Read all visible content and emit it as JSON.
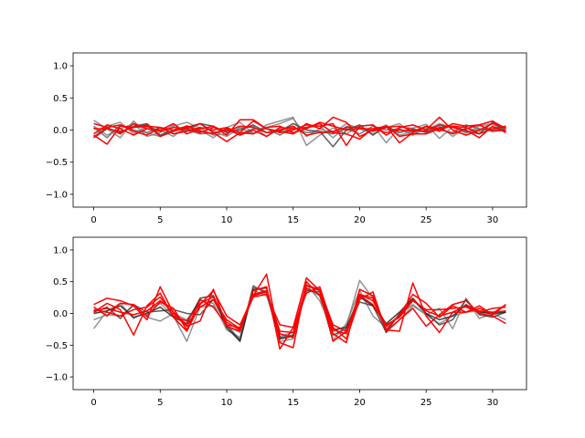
{
  "chart_data": [
    {
      "type": "line",
      "title": "",
      "xlabel": "",
      "ylabel": "",
      "xlim": [
        -1.55,
        32.55
      ],
      "ylim": [
        -1.2,
        1.2
      ],
      "xticks": [
        0,
        5,
        10,
        15,
        20,
        25,
        30
      ],
      "xtick_labels": [
        "0",
        "5",
        "10",
        "15",
        "20",
        "25",
        "30"
      ],
      "yticks": [
        1.0,
        0.5,
        0.0,
        -0.5,
        -1.0
      ],
      "ytick_labels": [
        "1.0",
        "0.5",
        "0.0",
        "−0.5",
        "−1.0"
      ],
      "grid": false,
      "x": [
        0,
        1,
        2,
        3,
        4,
        5,
        6,
        7,
        8,
        9,
        10,
        11,
        12,
        13,
        14,
        15,
        16,
        17,
        18,
        19,
        20,
        21,
        22,
        23,
        24,
        25,
        26,
        27,
        28,
        29,
        30,
        31
      ],
      "series": [
        {
          "group": "gray",
          "color": "#808080",
          "values": [
            0.15,
            0.02,
            -0.12,
            0.14,
            -0.05,
            -0.1,
            0.06,
            0.12,
            0.03,
            -0.08,
            -0.06,
            0.04,
            -0.06,
            0.08,
            0.14,
            0.2,
            -0.24,
            -0.08,
            0.03,
            -0.06,
            0.06,
            0.08,
            -0.2,
            0.04,
            0.03,
            0.09,
            -0.13,
            0.05,
            -0.05,
            0.06,
            0.1,
            -0.04
          ]
        },
        {
          "group": "gray",
          "color": "#808080",
          "values": [
            -0.1,
            0.06,
            0.12,
            -0.06,
            0.05,
            0.0,
            -0.1,
            0.07,
            0.0,
            -0.12,
            0.04,
            0.12,
            -0.05,
            0.04,
            0.1,
            0.18,
            -0.1,
            0.02,
            -0.05,
            0.1,
            0.02,
            -0.02,
            0.08,
            -0.08,
            -0.02,
            0.03,
            0.06,
            -0.1,
            0.04,
            -0.02,
            0.05,
            0.0
          ]
        },
        {
          "group": "gray",
          "color": "#808080",
          "values": [
            0.06,
            -0.08,
            0.02,
            0.1,
            -0.1,
            -0.04,
            0.08,
            -0.02,
            0.1,
            -0.02,
            -0.1,
            0.03,
            0.06,
            -0.1,
            0.02,
            -0.06,
            0.04,
            0.06,
            -0.12,
            0.06,
            0.02,
            -0.06,
            0.04,
            0.1,
            -0.06,
            0.0,
            0.1,
            0.04,
            -0.04,
            0.02,
            -0.02,
            0.06
          ]
        },
        {
          "group": "gray",
          "color": "#404040",
          "values": [
            -0.12,
            0.02,
            -0.04,
            0.06,
            0.1,
            -0.08,
            0.0,
            0.02,
            0.1,
            0.06,
            -0.04,
            0.0,
            0.08,
            -0.04,
            -0.02,
            0.1,
            0.0,
            -0.02,
            -0.26,
            0.0,
            0.08,
            -0.08,
            0.06,
            -0.04,
            0.02,
            -0.04,
            0.04,
            0.06,
            -0.02,
            -0.06,
            0.12,
            -0.02
          ]
        },
        {
          "group": "gray",
          "color": "#606060",
          "values": [
            0.04,
            -0.12,
            0.08,
            0.0,
            -0.04,
            0.04,
            -0.06,
            0.0,
            -0.06,
            -0.04,
            0.0,
            -0.06,
            0.02,
            0.02,
            -0.08,
            0.04,
            -0.04,
            -0.02,
            -0.06,
            0.02,
            -0.06,
            0.06,
            0.0,
            0.02,
            -0.08,
            0.06,
            0.0,
            -0.04,
            0.08,
            0.02,
            0.0,
            0.04
          ]
        },
        {
          "group": "red",
          "color": "#ff0000",
          "values": [
            -0.08,
            -0.22,
            0.06,
            0.04,
            0.08,
            -0.1,
            -0.02,
            0.04,
            0.1,
            -0.04,
            -0.18,
            -0.04,
            0.14,
            0.02,
            -0.02,
            -0.06,
            0.1,
            0.02,
            0.2,
            0.12,
            -0.1,
            0.0,
            0.06,
            -0.2,
            -0.04,
            0.06,
            -0.02,
            0.1,
            0.06,
            0.08,
            0.14,
            0.02
          ]
        },
        {
          "group": "red",
          "color": "#ff0000",
          "values": [
            0.1,
            0.04,
            -0.06,
            0.1,
            0.02,
            0.0,
            0.1,
            -0.06,
            0.02,
            0.06,
            -0.08,
            0.16,
            0.16,
            0.02,
            -0.04,
            0.0,
            0.08,
            0.06,
            0.1,
            -0.24,
            0.06,
            0.08,
            -0.08,
            0.04,
            0.08,
            0.0,
            0.2,
            0.0,
            -0.08,
            0.0,
            0.1,
            0.04
          ]
        },
        {
          "group": "red",
          "color": "#ff0000",
          "values": [
            -0.12,
            0.04,
            0.08,
            -0.02,
            -0.08,
            0.04,
            0.0,
            0.06,
            -0.02,
            -0.06,
            0.02,
            -0.08,
            0.0,
            -0.1,
            0.04,
            0.02,
            0.04,
            0.1,
            -0.04,
            -0.06,
            -0.14,
            0.02,
            0.06,
            -0.1,
            -0.06,
            -0.06,
            0.02,
            0.06,
            0.04,
            -0.06,
            0.02,
            0.06
          ]
        },
        {
          "group": "red",
          "color": "#ff0000",
          "values": [
            0.02,
            0.02,
            -0.02,
            0.04,
            0.06,
            0.04,
            -0.06,
            -0.02,
            0.04,
            0.0,
            0.04,
            -0.04,
            -0.06,
            0.04,
            0.06,
            -0.04,
            0.02,
            0.12,
            0.06,
            0.0,
            0.02,
            0.02,
            -0.04,
            0.0,
            -0.02,
            0.06,
            0.02,
            -0.06,
            0.02,
            0.08,
            -0.02,
            0.0
          ]
        },
        {
          "group": "red",
          "color": "#ff0000",
          "values": [
            -0.06,
            0.08,
            0.02,
            -0.08,
            0.02,
            -0.02,
            0.04,
            0.02,
            -0.04,
            0.04,
            -0.02,
            0.06,
            0.04,
            -0.04,
            0.0,
            0.06,
            -0.08,
            -0.04,
            -0.02,
            0.04,
            0.04,
            -0.02,
            0.04,
            0.06,
            0.0,
            -0.02,
            0.08,
            0.04,
            0.0,
            -0.12,
            0.06,
            -0.04
          ]
        }
      ]
    },
    {
      "type": "line",
      "title": "",
      "xlabel": "",
      "ylabel": "",
      "xlim": [
        -1.55,
        32.55
      ],
      "ylim": [
        -1.2,
        1.2
      ],
      "xticks": [
        0,
        5,
        10,
        15,
        20,
        25,
        30
      ],
      "xtick_labels": [
        "0",
        "5",
        "10",
        "15",
        "20",
        "25",
        "30"
      ],
      "yticks": [
        1.0,
        0.5,
        0.0,
        -0.5,
        -1.0
      ],
      "ytick_labels": [
        "1.0",
        "0.5",
        "0.0",
        "−0.5",
        "−1.0"
      ],
      "grid": false,
      "x": [
        0,
        1,
        2,
        3,
        4,
        5,
        6,
        7,
        8,
        9,
        10,
        11,
        12,
        13,
        14,
        15,
        16,
        17,
        18,
        19,
        20,
        21,
        22,
        23,
        24,
        25,
        26,
        27,
        28,
        29,
        30,
        31
      ],
      "series": [
        {
          "group": "gray",
          "color": "#808080",
          "values": [
            -0.24,
            0.04,
            0.16,
            -0.08,
            0.04,
            0.16,
            -0.04,
            -0.44,
            0.1,
            0.12,
            -0.2,
            -0.3,
            0.36,
            0.28,
            -0.36,
            -0.3,
            0.46,
            0.2,
            -0.28,
            -0.2,
            0.52,
            0.24,
            -0.3,
            -0.1,
            0.12,
            -0.02,
            0.08,
            -0.24,
            0.24,
            -0.08,
            0.0,
            -0.1
          ]
        },
        {
          "group": "gray",
          "color": "#808080",
          "values": [
            -0.1,
            -0.02,
            -0.04,
            0.12,
            -0.06,
            -0.12,
            0.0,
            -0.1,
            0.2,
            0.16,
            -0.26,
            -0.38,
            0.44,
            0.3,
            -0.44,
            -0.4,
            0.38,
            0.28,
            -0.42,
            -0.16,
            0.36,
            -0.04,
            -0.22,
            -0.02,
            0.14,
            -0.02,
            -0.16,
            -0.04,
            0.02,
            0.04,
            -0.02,
            0.02
          ]
        },
        {
          "group": "gray",
          "color": "#404040",
          "values": [
            0.02,
            0.1,
            -0.08,
            0.14,
            0.02,
            0.04,
            0.06,
            0.0,
            -0.02,
            0.22,
            -0.18,
            -0.42,
            0.42,
            0.34,
            -0.38,
            -0.34,
            0.36,
            0.34,
            -0.34,
            -0.24,
            0.18,
            0.12,
            -0.3,
            0.0,
            0.22,
            0.0,
            -0.18,
            -0.1,
            0.22,
            -0.02,
            -0.06,
            0.02
          ]
        },
        {
          "group": "gray",
          "color": "#202020",
          "values": [
            0.0,
            0.04,
            0.12,
            -0.06,
            0.0,
            0.1,
            -0.06,
            -0.16,
            0.24,
            0.28,
            -0.22,
            -0.44,
            0.38,
            0.4,
            -0.4,
            -0.36,
            0.44,
            0.36,
            -0.26,
            -0.22,
            0.26,
            0.12,
            -0.16,
            0.02,
            0.24,
            0.0,
            -0.1,
            -0.04,
            0.14,
            0.02,
            0.0,
            0.02
          ]
        },
        {
          "group": "red",
          "color": "#ff0000",
          "values": [
            0.14,
            0.24,
            0.2,
            0.12,
            -0.1,
            0.42,
            0.0,
            -0.2,
            -0.12,
            0.38,
            -0.2,
            -0.28,
            0.36,
            0.42,
            -0.56,
            -0.22,
            0.56,
            0.36,
            -0.44,
            -0.28,
            0.3,
            0.24,
            -0.26,
            -0.28,
            0.48,
            -0.04,
            -0.3,
            0.02,
            0.02,
            0.12,
            -0.02,
            0.14
          ]
        },
        {
          "group": "red",
          "color": "#ff0000",
          "values": [
            0.02,
            0.16,
            0.06,
            -0.34,
            0.12,
            0.32,
            -0.06,
            -0.28,
            0.14,
            0.36,
            -0.04,
            -0.18,
            0.28,
            0.62,
            -0.46,
            -0.54,
            0.5,
            0.28,
            -0.32,
            -0.46,
            0.38,
            0.28,
            -0.26,
            -0.02,
            0.3,
            0.16,
            -0.06,
            0.12,
            0.02,
            0.08,
            0.0,
            0.14
          ]
        },
        {
          "group": "red",
          "color": "#ff0000",
          "values": [
            0.1,
            -0.04,
            0.16,
            0.14,
            -0.04,
            0.18,
            0.08,
            -0.26,
            0.22,
            0.1,
            -0.18,
            -0.22,
            0.26,
            0.3,
            -0.18,
            -0.22,
            0.32,
            0.42,
            -0.22,
            -0.4,
            0.22,
            0.34,
            -0.28,
            -0.1,
            0.08,
            -0.2,
            -0.02,
            0.14,
            0.2,
            0.0,
            -0.04,
            -0.16
          ]
        },
        {
          "group": "red",
          "color": "#ff0000",
          "values": [
            0.06,
            0.02,
            -0.04,
            0.06,
            0.1,
            0.26,
            -0.04,
            -0.12,
            0.16,
            0.26,
            -0.14,
            -0.26,
            0.28,
            0.34,
            -0.28,
            -0.3,
            0.44,
            0.38,
            -0.18,
            -0.28,
            0.3,
            0.2,
            -0.18,
            -0.06,
            0.2,
            0.06,
            0.06,
            0.08,
            0.1,
            0.02,
            0.08,
            0.1
          ]
        },
        {
          "group": "red",
          "color": "#ff0000",
          "values": [
            0.04,
            0.08,
            0.02,
            -0.02,
            0.04,
            0.2,
            0.02,
            -0.18,
            0.1,
            0.22,
            -0.1,
            -0.24,
            0.3,
            0.36,
            -0.32,
            -0.38,
            0.4,
            0.3,
            -0.26,
            -0.32,
            0.28,
            0.14,
            -0.2,
            -0.04,
            0.22,
            0.04,
            -0.04,
            0.02,
            0.12,
            0.04,
            0.02,
            0.04
          ]
        }
      ]
    }
  ]
}
